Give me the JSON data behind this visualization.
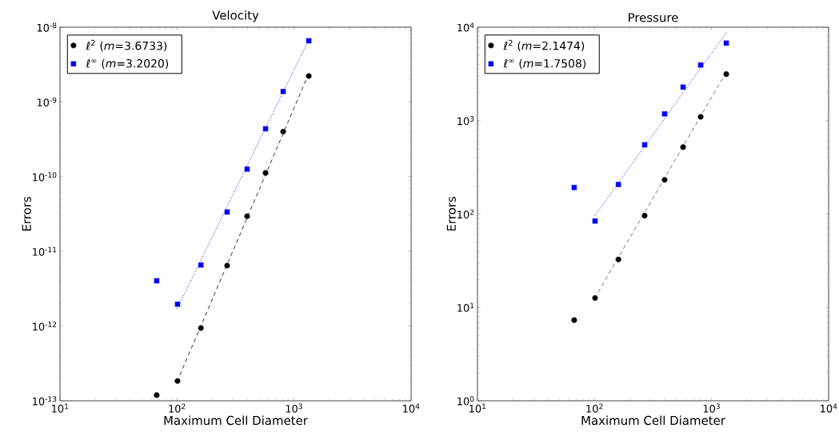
{
  "chart_data": [
    {
      "type": "scatter",
      "title": "Velocity",
      "xlabel": "Maximum Cell Diameter",
      "ylabel": "Errors",
      "log": "xy",
      "grid": false,
      "legend": "top left",
      "xlim": [
        10,
        10000
      ],
      "ylim": [
        1e-13,
        1e-08
      ],
      "xticks": [
        {
          "value": 10,
          "label": "10$^{1}$"
        },
        {
          "value": 100,
          "label": "10$^{2}$"
        },
        {
          "value": 1000,
          "label": "10$^{3}$"
        },
        {
          "value": 10000,
          "label": "10$^{4}$"
        }
      ],
      "yticks": [
        {
          "value": 1e-13,
          "label": "10$^{-13}$"
        },
        {
          "value": 1e-12,
          "label": "10$^{-12}$"
        },
        {
          "value": 1e-11,
          "label": "10$^{-11}$"
        },
        {
          "value": 1e-10,
          "label": "10$^{-10}$"
        },
        {
          "value": 1e-09,
          "label": "10$^{-9}$"
        },
        {
          "value": 1e-08,
          "label": "10$^{-8}$"
        }
      ],
      "series": [
        {
          "name": "ℓ$^{2}$  (*m*=3.6733)",
          "marker": "circle",
          "color": "#000000",
          "x": [
            67,
            101,
            160,
            268,
            397,
            571,
            807,
            1336
          ],
          "values": [
            1.19e-13,
            1.84e-13,
            9.4e-13,
            6.45e-12,
            2.95e-11,
            1.12e-10,
            4e-10,
            2.22e-09
          ]
        },
        {
          "name": "ℓ$^{∞}$  (*m*=3.2020)",
          "marker": "square",
          "color": "#0000ff",
          "x": [
            67,
            101,
            160,
            268,
            397,
            571,
            807,
            1336
          ],
          "values": [
            4.04e-12,
            1.96e-12,
            6.56e-12,
            3.36e-11,
            1.26e-10,
            4.37e-10,
            1.38e-09,
            6.58e-09
          ]
        },
        {
          "type": "line",
          "line_style": "dashed",
          "color": "#000000",
          "x": [
            100,
            1336
          ],
          "values": [
            1.8e-13,
            2.4e-09
          ]
        },
        {
          "type": "line",
          "line_style": "dotted",
          "color": "#0000ff",
          "x": [
            100,
            1336
          ],
          "values": [
            1.7e-12,
            6.8e-09
          ]
        }
      ]
    },
    {
      "type": "scatter",
      "title": "Pressure",
      "xlabel": "Maximum Cell Diameter",
      "ylabel": "Errors",
      "log": "xy",
      "grid": false,
      "legend": "top left",
      "xlim": [
        10,
        10000
      ],
      "ylim": [
        1,
        10000
      ],
      "xticks": [
        {
          "value": 10,
          "label": "10$^{1}$"
        },
        {
          "value": 100,
          "label": "10$^{2}$"
        },
        {
          "value": 1000,
          "label": "10$^{3}$"
        },
        {
          "value": 10000,
          "label": "10$^{4}$"
        }
      ],
      "yticks": [
        {
          "value": 1,
          "label": "10$^{0}$"
        },
        {
          "value": 10,
          "label": "10$^{1}$"
        },
        {
          "value": 100,
          "label": "10$^{2}$"
        },
        {
          "value": 1000,
          "label": "10$^{3}$"
        },
        {
          "value": 10000,
          "label": "10$^{4}$"
        }
      ],
      "series": [
        {
          "name": "ℓ$^{2}$  (*m*=2.1474)",
          "marker": "circle",
          "color": "#000000",
          "x": [
            67,
            101,
            160,
            268,
            397,
            571,
            807,
            1336
          ],
          "values": [
            7.3,
            12.6,
            32.6,
            96,
            232,
            520,
            1096,
            3140
          ]
        },
        {
          "name": "ℓ$^{∞}$  (*m*=1.7508)",
          "marker": "square",
          "color": "#0000ff",
          "x": [
            67,
            101,
            160,
            268,
            397,
            571,
            807,
            1336
          ],
          "values": [
            192,
            84,
            207,
            551,
            1180,
            2285,
            3935,
            6760
          ]
        },
        {
          "type": "line",
          "line_style": "dashed",
          "color": "#555555",
          "x": [
            100,
            1336
          ],
          "values": [
            12.5,
            3300
          ]
        },
        {
          "type": "line",
          "line_style": "dotted",
          "color": "#0000ff",
          "x": [
            100,
            1336
          ],
          "values": [
            95,
            8750
          ]
        }
      ]
    }
  ]
}
